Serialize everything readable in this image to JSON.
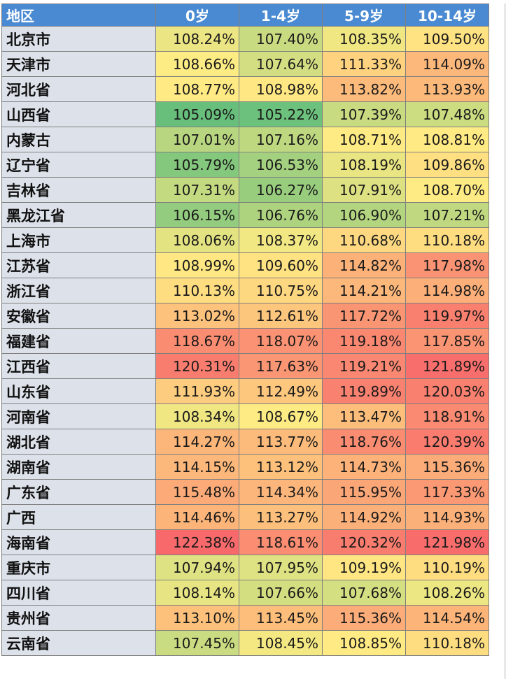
{
  "chart_data": {
    "type": "heatmap",
    "row_header": "地区",
    "columns": [
      "0岁",
      "1-4岁",
      "5-9岁",
      "10-14岁"
    ],
    "unit": "%",
    "color_scale": {
      "low": "#63be7b",
      "mid": "#ffeb84",
      "high": "#f8696b",
      "min": 105.0,
      "mid_value": 108.7,
      "max": 122.4
    },
    "rows": [
      {
        "region": "北京市",
        "values": [
          108.24,
          107.4,
          108.35,
          109.5
        ]
      },
      {
        "region": "天津市",
        "values": [
          108.66,
          107.64,
          111.33,
          114.09
        ]
      },
      {
        "region": "河北省",
        "values": [
          108.77,
          108.98,
          113.82,
          113.93
        ]
      },
      {
        "region": "山西省",
        "values": [
          105.09,
          105.22,
          107.39,
          107.48
        ]
      },
      {
        "region": "内蒙古",
        "values": [
          107.01,
          107.16,
          108.71,
          108.81
        ]
      },
      {
        "region": "辽宁省",
        "values": [
          105.79,
          106.53,
          108.19,
          109.86
        ]
      },
      {
        "region": "吉林省",
        "values": [
          107.31,
          106.27,
          107.91,
          108.7
        ]
      },
      {
        "region": "黑龙江省",
        "values": [
          106.15,
          106.76,
          106.9,
          107.21
        ]
      },
      {
        "region": "上海市",
        "values": [
          108.06,
          108.37,
          110.68,
          110.18
        ]
      },
      {
        "region": "江苏省",
        "values": [
          108.99,
          109.6,
          114.82,
          117.98
        ]
      },
      {
        "region": "浙江省",
        "values": [
          110.13,
          110.75,
          114.21,
          114.98
        ]
      },
      {
        "region": "安徽省",
        "values": [
          113.02,
          112.61,
          117.72,
          119.97
        ]
      },
      {
        "region": "福建省",
        "values": [
          118.67,
          118.07,
          119.18,
          117.85
        ]
      },
      {
        "region": "江西省",
        "values": [
          120.31,
          117.63,
          119.21,
          121.89
        ]
      },
      {
        "region": "山东省",
        "values": [
          111.93,
          112.49,
          119.89,
          120.03
        ]
      },
      {
        "region": "河南省",
        "values": [
          108.34,
          108.67,
          113.47,
          118.91
        ]
      },
      {
        "region": "湖北省",
        "values": [
          114.27,
          113.77,
          118.76,
          120.39
        ]
      },
      {
        "region": "湖南省",
        "values": [
          114.15,
          113.12,
          114.73,
          115.36
        ]
      },
      {
        "region": "广东省",
        "values": [
          115.48,
          114.34,
          115.95,
          117.33
        ]
      },
      {
        "region": "广西",
        "values": [
          114.46,
          113.27,
          114.92,
          114.93
        ]
      },
      {
        "region": "海南省",
        "values": [
          122.38,
          118.61,
          120.32,
          121.98
        ]
      },
      {
        "region": "重庆市",
        "values": [
          107.94,
          107.95,
          109.19,
          110.19
        ]
      },
      {
        "region": "四川省",
        "values": [
          108.14,
          107.66,
          107.68,
          108.26
        ]
      },
      {
        "region": "贵州省",
        "values": [
          113.1,
          113.45,
          115.36,
          114.54
        ]
      },
      {
        "region": "云南省",
        "values": [
          107.45,
          108.45,
          108.85,
          110.18
        ]
      }
    ]
  }
}
